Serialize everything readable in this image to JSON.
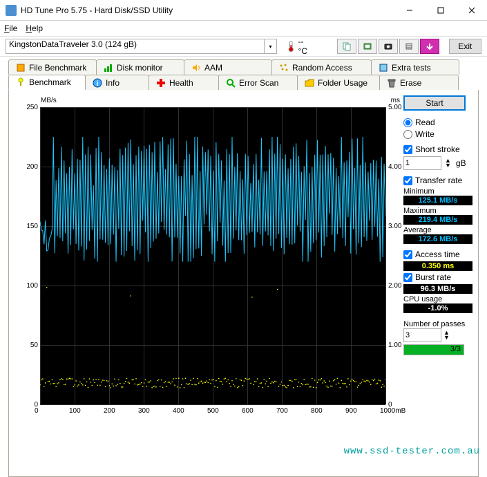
{
  "window": {
    "title": "HD Tune Pro 5.75 - Hard Disk/SSD Utility",
    "menu": {
      "file": "File",
      "help": "Help"
    }
  },
  "toolbar": {
    "drive": "KingstonDataTraveler 3.0 (124 gB)",
    "temp": "-- °C",
    "exit": "Exit"
  },
  "tabs_row1": [
    {
      "label": "File Benchmark"
    },
    {
      "label": "Disk monitor"
    },
    {
      "label": "AAM"
    },
    {
      "label": "Random Access"
    },
    {
      "label": "Extra tests"
    }
  ],
  "tabs_row2": [
    {
      "label": "Benchmark"
    },
    {
      "label": "Info"
    },
    {
      "label": "Health"
    },
    {
      "label": "Error Scan"
    },
    {
      "label": "Folder Usage"
    },
    {
      "label": "Erase"
    }
  ],
  "chart": {
    "y_left_unit": "MB/s",
    "y_right_unit": "ms",
    "x_unit_suffix": "mB",
    "y_left_ticks": [
      "250",
      "200",
      "150",
      "100",
      "50",
      "0"
    ],
    "y_right_ticks": [
      "5.00",
      "4.00",
      "3.00",
      "2.00",
      "1.00",
      "0"
    ],
    "x_ticks": [
      "0",
      "100",
      "200",
      "300",
      "400",
      "500",
      "600",
      "700",
      "800",
      "900",
      "1000"
    ],
    "y_max": 250,
    "bg": "#000000",
    "grid_color": "#303030",
    "transfer_color": "#1ec8ff",
    "access_color": "#ffff00",
    "transfer_band_min": 125,
    "transfer_band_max": 220,
    "transfer_avg": 172.6,
    "access_band_min": 14,
    "access_band_max": 22,
    "access_outlier_y": 90,
    "n_points": 260
  },
  "panel": {
    "start": "Start",
    "read": "Read",
    "write": "Write",
    "short_stroke": "Short stroke",
    "stroke_value": "1",
    "stroke_unit": "gB",
    "transfer_rate": "Transfer rate",
    "minimum": "Minimum",
    "minimum_val": "125.1 MB/s",
    "maximum": "Maximum",
    "maximum_val": "219.4 MB/s",
    "average": "Average",
    "average_val": "172.6 MB/s",
    "access_time": "Access time",
    "access_val": "0.350 ms",
    "burst_rate": "Burst rate",
    "burst_val": "96.3 MB/s",
    "cpu_usage": "CPU usage",
    "cpu_val": "-1.0%",
    "num_passes": "Number of passes",
    "passes_value": "3",
    "progress_text": "3/3",
    "progress_pct": 100
  },
  "watermark": "www.ssd-tester.com.au"
}
